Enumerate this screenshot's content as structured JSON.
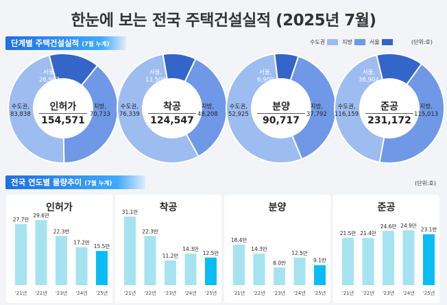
{
  "title": "한눈에 보는 전국 주택건설실적 (2025년 7월)",
  "section1": {
    "label": "단계별 주택건설실적",
    "sub": "(7월 누계)",
    "unit": "(단위:호)"
  },
  "legend": [
    {
      "name": "수도권",
      "color": "#9dbcf0"
    },
    {
      "name": "지방",
      "color": "#6f98e6"
    },
    {
      "name": "서울",
      "color": "#3466c9"
    }
  ],
  "section2": {
    "label": "전국 연도별 물량추이",
    "sub": "(7월 누계)",
    "unit": "(단위:호)"
  },
  "donuts": [
    {
      "name": "인허가",
      "total": "154,571",
      "seoul": {
        "label": "서울,",
        "value": "26,987"
      },
      "capital": {
        "label": "수도권,",
        "value": "83,838"
      },
      "local": {
        "label": "지방,",
        "value": "70,733"
      }
    },
    {
      "name": "착공",
      "total": "124,547",
      "seoul": {
        "label": "서울,",
        "value": "13,508"
      },
      "capital": {
        "label": "수도권,",
        "value": "76,339"
      },
      "local": {
        "label": "지방,",
        "value": "48,208"
      }
    },
    {
      "name": "분양",
      "total": "90,717",
      "seoul": {
        "label": "서울,",
        "value": "6,909"
      },
      "capital": {
        "label": "수도권,",
        "value": "52,925"
      },
      "local": {
        "label": "지방,",
        "value": "37,792"
      }
    },
    {
      "name": "준공",
      "total": "231,172",
      "seoul": {
        "label": "서울,",
        "value": "36,904"
      },
      "capital": {
        "label": "수도권,",
        "value": "116,159"
      },
      "local": {
        "label": "지방,",
        "value": "115,013"
      }
    }
  ],
  "chart_data": [
    {
      "type": "pie",
      "title": "인허가",
      "categories": [
        "서울",
        "수도권",
        "지방"
      ],
      "values": [
        26987,
        83838,
        70733
      ],
      "total": 154571
    },
    {
      "type": "pie",
      "title": "착공",
      "categories": [
        "서울",
        "수도권",
        "지방"
      ],
      "values": [
        13508,
        76339,
        48208
      ],
      "total": 124547
    },
    {
      "type": "pie",
      "title": "분양",
      "categories": [
        "서울",
        "수도권",
        "지방"
      ],
      "values": [
        6909,
        52925,
        37792
      ],
      "total": 90717
    },
    {
      "type": "pie",
      "title": "준공",
      "categories": [
        "서울",
        "수도권",
        "지방"
      ],
      "values": [
        36904,
        116159,
        115013
      ],
      "total": 231172
    },
    {
      "type": "bar",
      "title": "인허가",
      "categories": [
        "'21년",
        "'22년",
        "'23년",
        "'24년",
        "'25년"
      ],
      "values": [
        27.7,
        29.6,
        22.3,
        17.2,
        15.5
      ],
      "labels": [
        "27.7만",
        "29.6만",
        "22.3만",
        "17.2만",
        "15.5만"
      ]
    },
    {
      "type": "bar",
      "title": "착공",
      "categories": [
        "'21년",
        "'22년",
        "'23년",
        "'24년",
        "'25년"
      ],
      "values": [
        31.1,
        22.3,
        11.2,
        14.3,
        12.5
      ],
      "labels": [
        "31.1만",
        "22.3만",
        "11.2만",
        "14.3만",
        "12.5만"
      ]
    },
    {
      "type": "bar",
      "title": "분양",
      "categories": [
        "'21년",
        "'22년",
        "'23년",
        "'24년",
        "'25년"
      ],
      "values": [
        18.4,
        14.3,
        8.0,
        12.5,
        9.1
      ],
      "labels": [
        "18.4만",
        "14.3만",
        "8.0만",
        "12.5만",
        "9.1만"
      ]
    },
    {
      "type": "bar",
      "title": "준공",
      "categories": [
        "'21년",
        "'22년",
        "'23년",
        "'24년",
        "'25년"
      ],
      "values": [
        21.5,
        21.4,
        24.6,
        24.9,
        23.1
      ],
      "labels": [
        "21.5만",
        "21.4만",
        "24.6만",
        "24.9만",
        "23.1만"
      ]
    }
  ],
  "colors": {
    "bar": "#a6e3f0",
    "bar_current": "#0bbcf5",
    "capital": "#9dbcf0",
    "local": "#6f98e6",
    "seoul": "#3466c9"
  }
}
